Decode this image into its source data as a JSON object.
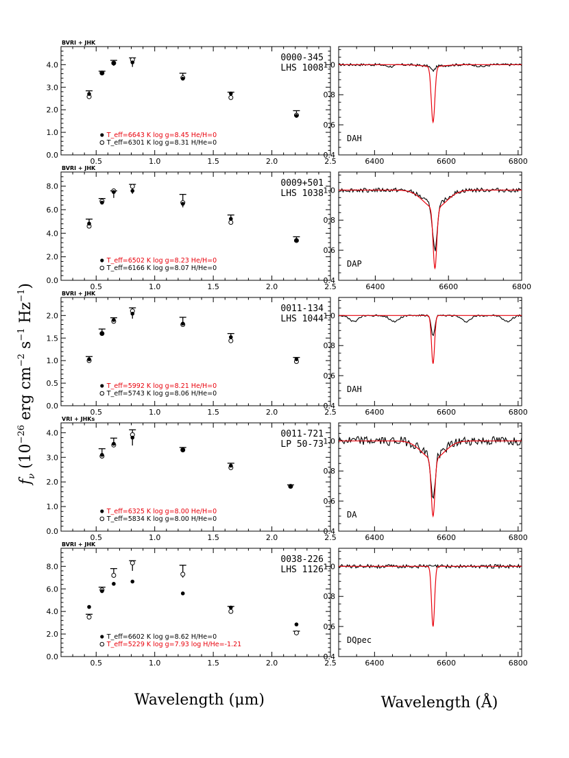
{
  "figure": {
    "ylabel": "f_ν (10^-26 erg cm^-2 s^-1 Hz^-1)",
    "ylabel_parts": {
      "f": "f",
      "nu": "ν",
      "pre": " (10",
      "e1": "−26",
      "erg": " erg cm",
      "e2": "−2",
      "s": " s",
      "e3": "−1",
      "hz": " Hz",
      "e4": "−1",
      "close": ")"
    },
    "xlabel_sed": "Wavelength (μm)",
    "xlabel_spec": "Wavelength (Å)",
    "colors": {
      "model_red": "#e8000b",
      "data": "#000000"
    }
  },
  "chart_data": [
    {
      "type": "scatter",
      "name": "0000-345",
      "title": "0000-345",
      "subtitle": "LHS 1008",
      "photometry_label": "BVRI + JHK",
      "xlim": [
        0.2,
        2.5
      ],
      "ylim": [
        0,
        4.8
      ],
      "xticks": [
        0.5,
        1.0,
        1.5,
        2.0,
        2.5
      ],
      "xticklabels": [
        "0.5",
        "1.0",
        "1.5",
        "2.0",
        "2.5"
      ],
      "yticks": [
        0,
        1,
        2,
        3,
        4
      ],
      "yticklabels": [
        "0.0",
        "1.0",
        "2.0",
        "3.0",
        "4.0"
      ],
      "yminor": 0.2,
      "observed": {
        "x": [
          0.44,
          0.55,
          0.65,
          0.81,
          1.24,
          1.65,
          2.21
        ],
        "y": [
          2.72,
          3.65,
          4.07,
          4.1,
          3.48,
          2.68,
          1.84
        ],
        "err": [
          0.12,
          0.06,
          0.12,
          0.2,
          0.14,
          0.1,
          0.12
        ]
      },
      "model_filled": [
        2.7,
        3.62,
        4.06,
        4.1,
        3.38,
        2.72,
        1.73
      ],
      "model_open": [
        2.58,
        3.63,
        4.07,
        4.22,
        3.42,
        2.54,
        1.76
      ],
      "legend": [
        {
          "marker": "filled",
          "text": "T_eff=6643 K  log g=8.45  He/H=0",
          "color": "#e8000b"
        },
        {
          "marker": "open",
          "text": "T_eff=6301 K  log g=8.31  H/He=0",
          "color": "#000000"
        }
      ],
      "spectrum": {
        "label": "DAH",
        "xlim": [
          6300,
          6810
        ],
        "ylim": [
          0.4,
          1.12
        ],
        "xticks": [
          6400,
          6600,
          6800
        ],
        "xticklabels": [
          "6400",
          "6600",
          "6800"
        ],
        "yticks": [
          0.4,
          0.6,
          0.8,
          1.0
        ],
        "yticklabels": [
          "0.4",
          "0.6",
          "0.8",
          "1.0"
        ],
        "model_depth": 0.37,
        "model_width": 7,
        "model_wing": 0.012,
        "obs_depth": 0.03,
        "obs_width": 8,
        "noise": 0.008,
        "obs_dips": [
          6445,
          6700
        ],
        "dip_amp": 0.012
      }
    },
    {
      "type": "scatter",
      "name": "0009+501",
      "title": "0009+501",
      "subtitle": "LHS 1038",
      "photometry_label": "BVRI + JHK",
      "xlim": [
        0.2,
        2.5
      ],
      "ylim": [
        0,
        9.2
      ],
      "xticks": [
        0.5,
        1.0,
        1.5,
        2.0,
        2.5
      ],
      "xticklabels": [
        "0.5",
        "1.0",
        "1.5",
        "2.0",
        "2.5"
      ],
      "yticks": [
        0,
        2,
        4,
        6,
        8
      ],
      "yticklabels": [
        "0.0",
        "2.0",
        "4.0",
        "6.0",
        "8.0"
      ],
      "yminor": 0.4,
      "observed": {
        "x": [
          0.44,
          0.55,
          0.65,
          0.81,
          1.24,
          1.65,
          2.21
        ],
        "y": [
          4.9,
          6.75,
          7.3,
          7.75,
          6.75,
          5.25,
          3.45
        ],
        "err": [
          0.3,
          0.2,
          0.3,
          0.4,
          0.55,
          0.3,
          0.25
        ]
      },
      "model_filled": [
        4.82,
        6.6,
        7.5,
        7.6,
        6.5,
        5.22,
        3.4
      ],
      "model_open": [
        4.6,
        6.72,
        7.6,
        7.98,
        6.6,
        4.92,
        3.38
      ],
      "legend": [
        {
          "marker": "filled",
          "text": "T_eff=6502 K  log g=8.23  He/H=0",
          "color": "#e8000b"
        },
        {
          "marker": "open",
          "text": "T_eff=6166 K  log g=8.07  H/He=0",
          "color": "#000000"
        }
      ],
      "spectrum": {
        "label": "DAP",
        "xlim": [
          6300,
          6800
        ],
        "ylim": [
          0.4,
          1.12
        ],
        "xticks": [
          6400,
          6600,
          6800
        ],
        "xticklabels": [
          "6400",
          "6600",
          "6800"
        ],
        "yticks": [
          0.4,
          0.6,
          0.8,
          1.0
        ],
        "yticklabels": [
          "0.4",
          "0.6",
          "0.8",
          "1.0"
        ],
        "model_depth": 0.4,
        "model_width": 7,
        "model_wing": 0.12,
        "obs_depth": 0.3,
        "obs_width": 9,
        "noise": 0.014,
        "obs_dips": [],
        "dip_amp": 0
      }
    },
    {
      "type": "scatter",
      "name": "0011-134",
      "title": "0011-134",
      "subtitle": "LHS 1044",
      "photometry_label": "BVRI + JHK",
      "xlim": [
        0.2,
        2.5
      ],
      "ylim": [
        0,
        2.4
      ],
      "xticks": [
        0.5,
        1.0,
        1.5,
        2.0,
        2.5
      ],
      "xticklabels": [
        "0.5",
        "1.0",
        "1.5",
        "2.0",
        "2.5"
      ],
      "yticks": [
        0,
        0.5,
        1.0,
        1.5,
        2.0
      ],
      "yticklabels": [
        "0.0",
        "0.5",
        "1.0",
        "1.5",
        "2.0"
      ],
      "yminor": 0.1,
      "observed": {
        "x": [
          0.44,
          0.55,
          0.65,
          0.81,
          1.24,
          1.65,
          2.21
        ],
        "y": [
          1.05,
          1.64,
          1.9,
          2.05,
          1.88,
          1.52,
          1.02
        ],
        "err": [
          0.04,
          0.06,
          0.05,
          0.12,
          0.08,
          0.08,
          0.05
        ]
      },
      "model_filled": [
        1.03,
        1.6,
        1.9,
        2.04,
        1.82,
        1.52,
        1.03
      ],
      "model_open": [
        1.0,
        1.6,
        1.87,
        2.1,
        1.8,
        1.44,
        0.98
      ],
      "legend": [
        {
          "marker": "filled",
          "text": "T_eff=5992 K  log g=8.21  He/H=0",
          "color": "#e8000b"
        },
        {
          "marker": "open",
          "text": "T_eff=5743 K  log g=8.06  H/He=0",
          "color": "#000000"
        }
      ],
      "spectrum": {
        "label": "DAH",
        "xlim": [
          6300,
          6810
        ],
        "ylim": [
          0.4,
          1.12
        ],
        "xticks": [
          6400,
          6600,
          6800
        ],
        "xticklabels": [
          "6400",
          "6600",
          "6800"
        ],
        "yticks": [
          0.4,
          0.6,
          0.8,
          1.0
        ],
        "yticklabels": [
          "0.4",
          "0.6",
          "0.8",
          "1.0"
        ],
        "model_depth": 0.32,
        "model_width": 6,
        "model_wing": 0.0,
        "obs_depth": 0.14,
        "obs_width": 7,
        "noise": 0.006,
        "obs_dips": [
          6342,
          6455,
          6655,
          6770
        ],
        "dip_amp": 0.04
      }
    },
    {
      "type": "scatter",
      "name": "0011-721",
      "title": "0011-721",
      "subtitle": "LP 50-73",
      "photometry_label": "VRI + JHKs",
      "xlim": [
        0.2,
        2.5
      ],
      "ylim": [
        0,
        4.4
      ],
      "xticks": [
        0.5,
        1.0,
        1.5,
        2.0,
        2.5
      ],
      "xticklabels": [
        "0.5",
        "1.0",
        "1.5",
        "2.0",
        "2.5"
      ],
      "yticks": [
        0,
        1,
        2,
        3,
        4
      ],
      "yticklabels": [
        "0.0",
        "1.0",
        "2.0",
        "3.0",
        "4.0"
      ],
      "yminor": 0.2,
      "observed": {
        "x": [
          0.55,
          0.65,
          0.81,
          1.24,
          1.65,
          2.16
        ],
        "y": [
          3.15,
          3.6,
          3.8,
          3.32,
          2.66,
          1.83
        ],
        "err": [
          0.2,
          0.18,
          0.32,
          0.08,
          0.1,
          0.05
        ]
      },
      "model_filled": [
        3.1,
        3.55,
        3.8,
        3.3,
        2.66,
        1.82
      ],
      "model_open": [
        3.05,
        3.5,
        3.92,
        3.3,
        2.58,
        1.82
      ],
      "legend": [
        {
          "marker": "filled",
          "text": "T_eff=6325 K  log g=8.00  He/H=0",
          "color": "#e8000b"
        },
        {
          "marker": "open",
          "text": "T_eff=5834 K  log g=8.00  H/He=0",
          "color": "#000000"
        }
      ],
      "spectrum": {
        "label": "DA",
        "xlim": [
          6300,
          6810
        ],
        "ylim": [
          0.4,
          1.12
        ],
        "xticks": [
          6400,
          6600,
          6800
        ],
        "xticklabels": [
          "6400",
          "6600",
          "6800"
        ],
        "yticks": [
          0.4,
          0.6,
          0.8,
          1.0
        ],
        "yticklabels": [
          "0.4",
          "0.6",
          "0.8",
          "1.0"
        ],
        "model_depth": 0.38,
        "model_width": 7,
        "model_wing": 0.12,
        "obs_depth": 0.3,
        "obs_width": 8,
        "noise": 0.03,
        "obs_dips": [],
        "dip_amp": 0
      }
    },
    {
      "type": "scatter",
      "name": "0038-226",
      "title": "0038-226",
      "subtitle": "LHS 1126",
      "photometry_label": "BVRI + JHK",
      "xlim": [
        0.2,
        2.5
      ],
      "ylim": [
        0,
        9.6
      ],
      "xticks": [
        0.5,
        1.0,
        1.5,
        2.0,
        2.5
      ],
      "xticklabels": [
        "0.5",
        "1.0",
        "1.5",
        "2.0",
        "2.5"
      ],
      "yticks": [
        0,
        2,
        4,
        6,
        8
      ],
      "yticklabels": [
        "0.0",
        "2.0",
        "4.0",
        "6.0",
        "8.0"
      ],
      "yminor": 0.4,
      "observed": {
        "x": [
          0.44,
          0.55,
          0.65,
          0.81,
          1.24,
          1.65,
          2.21
        ],
        "y": [
          3.55,
          5.9,
          7.45,
          8.05,
          7.55,
          4.15,
          2.1
        ],
        "err": [
          0.2,
          0.25,
          0.35,
          0.45,
          0.55,
          0.3,
          0.15
        ]
      },
      "model_filled": [
        4.4,
        5.8,
        6.45,
        6.65,
        5.6,
        4.35,
        2.85
      ],
      "model_open": [
        3.5,
        5.9,
        7.2,
        8.3,
        7.3,
        4.0,
        2.1
      ],
      "legend": [
        {
          "marker": "filled",
          "text": "T_eff=6602 K  log g=8.62  H/He=0",
          "color": "#000000"
        },
        {
          "marker": "open",
          "text": "T_eff=5229 K  log g=7.93  log H/He=-1.21",
          "color": "#e8000b"
        }
      ],
      "spectrum": {
        "label": "DQpec",
        "xlim": [
          6300,
          6810
        ],
        "ylim": [
          0.4,
          1.12
        ],
        "xticks": [
          6400,
          6600,
          6800
        ],
        "xticklabels": [
          "6400",
          "6600",
          "6800"
        ],
        "yticks": [
          0.4,
          0.6,
          0.8,
          1.0
        ],
        "yticklabels": [
          "0.4",
          "0.6",
          "0.8",
          "1.0"
        ],
        "model_depth": 0.4,
        "model_width": 6,
        "model_wing": 0.0,
        "obs_depth": 0.0,
        "obs_width": 8,
        "noise": 0.012,
        "obs_dips": [],
        "dip_amp": 0
      }
    }
  ]
}
